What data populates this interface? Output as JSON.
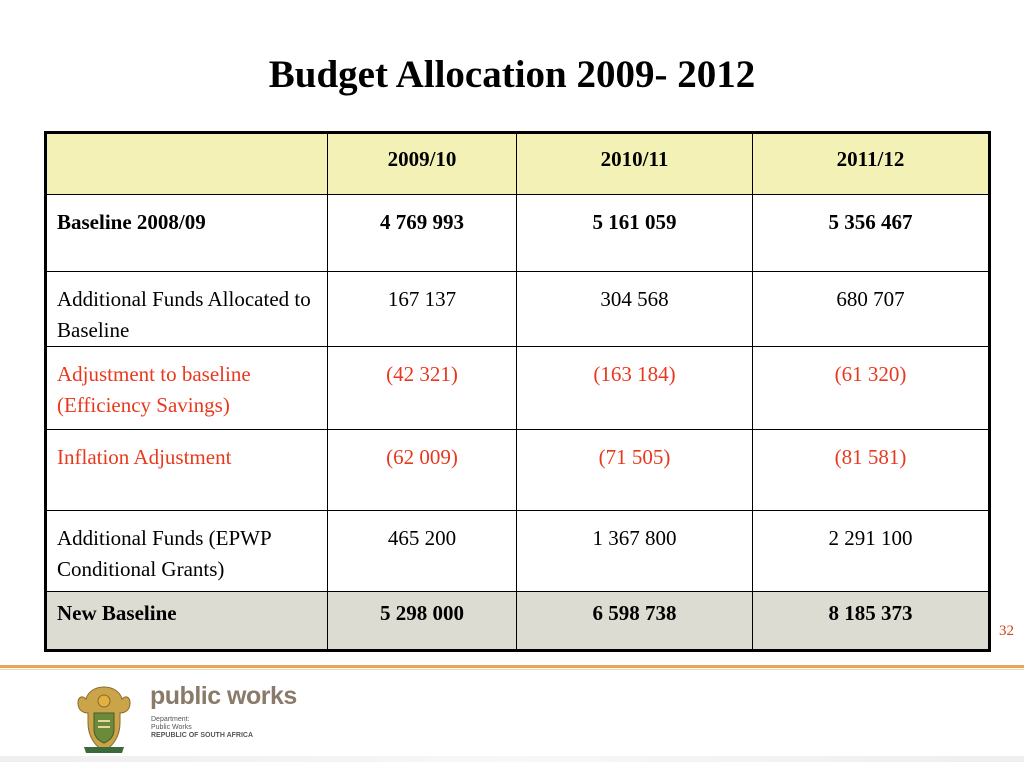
{
  "slide": {
    "title": "Budget Allocation 2009- 2012",
    "page_number": "32"
  },
  "table": {
    "headers": [
      "",
      "2009/10",
      "2010/11",
      "2011/12"
    ],
    "rows": [
      {
        "label": "Baseline 2008/09",
        "values": [
          "4 769 993",
          "5 161 059",
          "5 356 467"
        ],
        "style": "bold"
      },
      {
        "label": "Additional Funds Allocated to Baseline",
        "values": [
          "167 137",
          "304 568",
          "680 707"
        ],
        "style": "normal"
      },
      {
        "label": "Adjustment to baseline (Efficiency Savings)",
        "values": [
          "(42 321)",
          "(163 184)",
          "(61 320)"
        ],
        "style": "red"
      },
      {
        "label": "Inflation Adjustment",
        "values": [
          "(62 009)",
          "(71 505)",
          "(81 581)"
        ],
        "style": "red"
      },
      {
        "label": "Additional Funds (EPWP Conditional Grants)",
        "values": [
          "465 200",
          "1 367 800",
          "2 291 100"
        ],
        "style": "normal"
      },
      {
        "label": "New Baseline",
        "values": [
          "5 298 000",
          "6 598 738",
          "8 185 373"
        ],
        "style": "total"
      }
    ]
  },
  "footer": {
    "org_name": "public works",
    "sub_lines": [
      "Department:",
      "Public Works",
      "REPUBLIC OF SOUTH AFRICA"
    ]
  },
  "colors": {
    "header_fill": "#f4f1b6",
    "total_fill": "#dcdcd2",
    "negative_text": "#e8391e",
    "footer_rule": "#e8a55a"
  }
}
